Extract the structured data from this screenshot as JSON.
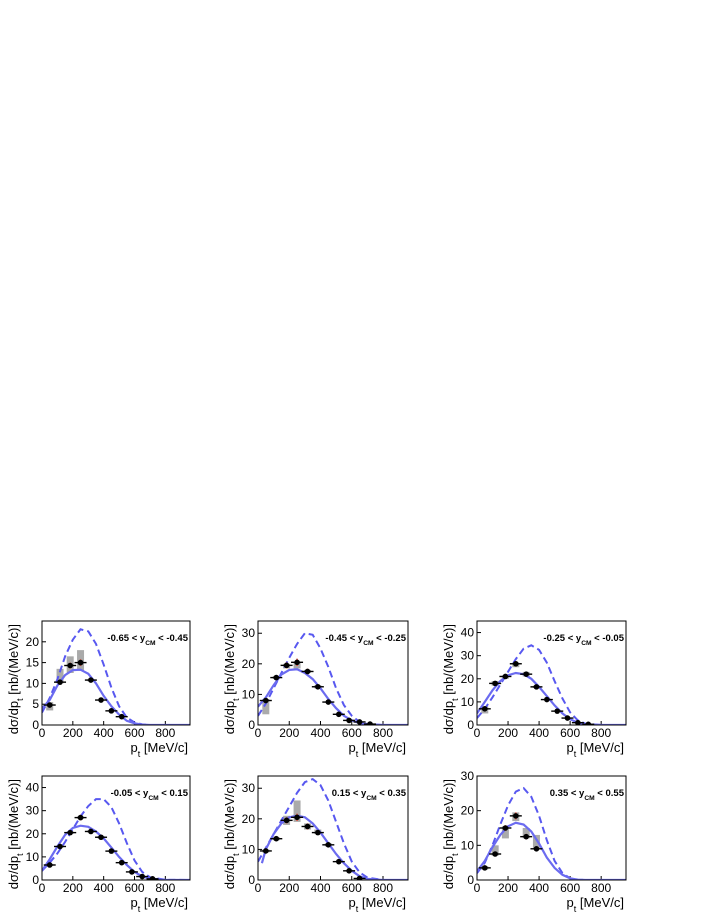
{
  "figure": {
    "xlabel": "p_t [MeV/c]",
    "ylabel": "dσ/dp_t [nb/(MeV/c)]",
    "colors": {
      "data_point": "#000000",
      "stat_error": "#e8503a",
      "sys_box": "#aaaaaa",
      "model_solid": "#6b6bf0",
      "model_dashed": "#5858f0"
    }
  },
  "chart_data": [
    {
      "type": "scatter",
      "range_label": "-0.65 < y_CM < -0.45",
      "xlim": [
        0,
        960
      ],
      "ylim": [
        0,
        25
      ],
      "x_ticks": [
        0,
        200,
        400,
        600,
        800
      ],
      "y_ticks": [
        0,
        5,
        10,
        15,
        20
      ],
      "grid": false,
      "series": [
        {
          "kind": "data",
          "x": [
            50,
            117,
            183,
            250,
            317,
            383,
            450,
            517
          ],
          "y": [
            4.8,
            10.3,
            14.3,
            15.0,
            10.8,
            6.0,
            3.4,
            2.0
          ],
          "stat_err": [
            0.4,
            0.5,
            0.7,
            0.8,
            0.6,
            0.4,
            0.3,
            0.2
          ],
          "sys_lo": [
            3.5,
            10.0,
            12.5,
            13.0,
            10.5,
            6.0,
            3.4,
            2.0
          ],
          "sys_hi": [
            5.5,
            13.5,
            16.5,
            18.0,
            11.0,
            6.0,
            3.4,
            2.0
          ]
        },
        {
          "kind": "model_solid",
          "x": [
            0,
            50,
            100,
            150,
            200,
            250,
            300,
            350,
            400,
            450,
            500,
            550,
            600,
            650,
            700,
            800,
            960
          ],
          "y": [
            4.0,
            6.0,
            9.5,
            12.0,
            13.2,
            13.3,
            12.3,
            10.0,
            7.0,
            4.5,
            2.5,
            1.0,
            0.4,
            0.1,
            0.0,
            0.0,
            0.0
          ]
        },
        {
          "kind": "model_dashed",
          "x": [
            0,
            50,
            100,
            150,
            200,
            250,
            300,
            350,
            400,
            450,
            500,
            550,
            600,
            650,
            700,
            800,
            960
          ],
          "y": [
            3.0,
            6.5,
            11.0,
            16.5,
            20.5,
            23.0,
            22.5,
            19.5,
            14.5,
            9.0,
            4.5,
            1.8,
            0.6,
            0.15,
            0.0,
            0.0,
            0.0
          ]
        }
      ]
    },
    {
      "type": "scatter",
      "range_label": "-0.45 < y_CM < -0.25",
      "xlim": [
        0,
        960
      ],
      "ylim": [
        0,
        34
      ],
      "x_ticks": [
        0,
        200,
        400,
        600,
        800
      ],
      "y_ticks": [
        0,
        10,
        20,
        30
      ],
      "grid": false,
      "series": [
        {
          "kind": "data",
          "x": [
            50,
            117,
            183,
            250,
            317,
            383,
            450,
            517,
            583,
            650,
            717
          ],
          "y": [
            8.0,
            15.5,
            19.5,
            20.5,
            17.5,
            12.5,
            7.5,
            3.5,
            1.5,
            1.0,
            0.3
          ],
          "stat_err": [
            0.5,
            0.6,
            1.0,
            1.2,
            0.9,
            0.7,
            0.5,
            0.3,
            0.2,
            0.2,
            0.1
          ],
          "sys_lo": [
            3.5,
            15.0,
            18.5,
            18.5,
            17.0,
            12.0,
            7.5,
            3.5,
            1.5,
            1.0,
            0.3
          ],
          "sys_hi": [
            8.5,
            16.0,
            20.0,
            20.5,
            18.0,
            13.0,
            7.5,
            3.5,
            1.5,
            1.0,
            0.3
          ]
        },
        {
          "kind": "model_solid",
          "x": [
            0,
            50,
            100,
            150,
            200,
            250,
            300,
            350,
            400,
            450,
            500,
            550,
            600,
            650,
            700,
            800,
            960
          ],
          "y": [
            6.0,
            9.0,
            13.0,
            16.5,
            18.0,
            18.2,
            17.0,
            15.0,
            12.0,
            8.5,
            5.5,
            3.0,
            1.5,
            0.6,
            0.2,
            0.0,
            0.0
          ]
        },
        {
          "kind": "model_dashed",
          "x": [
            0,
            50,
            100,
            150,
            200,
            250,
            300,
            350,
            400,
            450,
            500,
            550,
            600,
            650,
            700,
            800,
            960
          ],
          "y": [
            3.0,
            7.0,
            12.0,
            17.0,
            22.0,
            26.5,
            30.0,
            29.5,
            25.0,
            19.0,
            12.0,
            6.5,
            3.0,
            1.0,
            0.3,
            0.0,
            0.0
          ]
        }
      ]
    },
    {
      "type": "scatter",
      "range_label": "-0.25 < y_CM < -0.05",
      "xlim": [
        0,
        960
      ],
      "ylim": [
        0,
        45
      ],
      "x_ticks": [
        0,
        200,
        400,
        600,
        800
      ],
      "y_ticks": [
        0,
        10,
        20,
        30,
        40
      ],
      "grid": false,
      "series": [
        {
          "kind": "data",
          "x": [
            50,
            117,
            183,
            250,
            317,
            383,
            450,
            517,
            583,
            650,
            717
          ],
          "y": [
            7.0,
            18.0,
            21.0,
            26.5,
            22.0,
            16.5,
            11.0,
            6.0,
            3.0,
            1.0,
            0.3
          ],
          "stat_err": [
            0.6,
            0.8,
            1.0,
            1.2,
            1.0,
            0.8,
            0.6,
            0.4,
            0.3,
            0.2,
            0.1
          ],
          "sys_lo": [
            5.0,
            17.0,
            20.0,
            25.0,
            21.0,
            16.0,
            11.0,
            6.0,
            3.0,
            1.0,
            0.3
          ],
          "sys_hi": [
            8.0,
            19.0,
            21.5,
            27.0,
            23.0,
            17.0,
            11.0,
            6.0,
            3.0,
            1.0,
            0.3
          ]
        },
        {
          "kind": "model_solid",
          "x": [
            0,
            50,
            100,
            150,
            200,
            250,
            300,
            350,
            400,
            450,
            500,
            550,
            600,
            650,
            700,
            800,
            960
          ],
          "y": [
            5.0,
            10.0,
            15.0,
            19.0,
            21.5,
            22.5,
            22.0,
            20.0,
            16.5,
            12.5,
            8.5,
            5.0,
            2.5,
            1.0,
            0.3,
            0.0,
            0.0
          ]
        },
        {
          "kind": "model_dashed",
          "x": [
            0,
            50,
            100,
            150,
            200,
            250,
            300,
            350,
            400,
            450,
            500,
            550,
            600,
            650,
            700,
            800,
            960
          ],
          "y": [
            3.0,
            7.0,
            12.0,
            17.5,
            23.0,
            28.5,
            33.0,
            34.5,
            32.5,
            27.0,
            19.0,
            11.5,
            5.5,
            2.0,
            0.5,
            0.0,
            0.0
          ]
        }
      ]
    },
    {
      "type": "scatter",
      "range_label": "-0.05 < y_CM < 0.15",
      "xlim": [
        0,
        960
      ],
      "ylim": [
        0,
        45
      ],
      "x_ticks": [
        0,
        200,
        400,
        600,
        800
      ],
      "y_ticks": [
        0,
        10,
        20,
        30,
        40
      ],
      "grid": false,
      "series": [
        {
          "kind": "data",
          "x": [
            50,
            117,
            183,
            250,
            317,
            383,
            450,
            517,
            583,
            650,
            717
          ],
          "y": [
            6.5,
            14.5,
            20.5,
            27.0,
            21.0,
            18.5,
            12.5,
            7.5,
            3.5,
            1.5,
            0.5
          ],
          "stat_err": [
            0.6,
            0.8,
            1.0,
            1.2,
            1.0,
            0.8,
            0.6,
            0.4,
            0.3,
            0.2,
            0.1
          ],
          "sys_lo": [
            6.0,
            14.0,
            20.0,
            26.5,
            20.5,
            18.0,
            12.5,
            7.5,
            3.5,
            1.5,
            0.5
          ],
          "sys_hi": [
            7.0,
            15.0,
            21.0,
            27.5,
            21.5,
            19.0,
            12.5,
            7.5,
            3.5,
            1.5,
            0.5
          ]
        },
        {
          "kind": "model_solid",
          "x": [
            0,
            50,
            100,
            150,
            200,
            250,
            300,
            350,
            400,
            450,
            500,
            550,
            600,
            650,
            700,
            800,
            960
          ],
          "y": [
            4.0,
            9.0,
            14.5,
            19.5,
            22.5,
            23.5,
            23.0,
            21.0,
            18.0,
            14.0,
            10.0,
            6.5,
            3.5,
            1.5,
            0.6,
            0.1,
            0.0
          ]
        },
        {
          "kind": "model_dashed",
          "x": [
            0,
            50,
            100,
            150,
            200,
            250,
            300,
            350,
            400,
            450,
            500,
            550,
            600,
            650,
            700,
            800,
            960
          ],
          "y": [
            4.0,
            7.5,
            11.5,
            16.5,
            22.0,
            27.5,
            32.0,
            35.0,
            35.0,
            31.5,
            24.5,
            16.0,
            8.5,
            3.5,
            1.2,
            0.1,
            0.0
          ]
        }
      ]
    },
    {
      "type": "scatter",
      "range_label": "0.15 < y_CM < 0.35",
      "xlim": [
        0,
        960
      ],
      "ylim": [
        0,
        34
      ],
      "x_ticks": [
        0,
        200,
        400,
        600,
        800
      ],
      "y_ticks": [
        0,
        10,
        20,
        30
      ],
      "grid": false,
      "series": [
        {
          "kind": "data",
          "x": [
            50,
            117,
            183,
            250,
            317,
            383,
            450,
            517,
            583,
            650
          ],
          "y": [
            9.5,
            13.5,
            19.5,
            20.5,
            17.5,
            15.5,
            11.5,
            6.0,
            3.0,
            0.5
          ],
          "stat_err": [
            0.5,
            0.7,
            1.0,
            1.2,
            1.0,
            0.8,
            0.6,
            0.4,
            0.3,
            0.1
          ],
          "sys_lo": [
            9.0,
            13.0,
            18.0,
            19.0,
            16.5,
            15.0,
            11.0,
            6.0,
            3.0,
            0.5
          ],
          "sys_hi": [
            10.0,
            14.0,
            21.0,
            26.0,
            18.5,
            16.5,
            12.0,
            6.0,
            3.0,
            0.5
          ]
        },
        {
          "kind": "model_solid",
          "x": [
            25,
            50,
            100,
            150,
            200,
            250,
            300,
            350,
            400,
            450,
            500,
            550,
            600,
            650,
            700,
            800,
            960
          ],
          "y": [
            5.5,
            10.0,
            15.0,
            18.5,
            20.5,
            21.0,
            20.5,
            18.5,
            15.5,
            12.0,
            8.5,
            5.5,
            3.0,
            1.2,
            0.4,
            0.0,
            0.0
          ]
        },
        {
          "kind": "model_dashed",
          "x": [
            0,
            50,
            100,
            150,
            200,
            250,
            300,
            350,
            400,
            450,
            500,
            550,
            600,
            650,
            700,
            800,
            960
          ],
          "y": [
            6.0,
            10.5,
            15.0,
            19.5,
            24.0,
            28.5,
            32.0,
            33.0,
            31.0,
            26.0,
            19.0,
            12.0,
            6.0,
            2.5,
            0.8,
            0.0,
            0.0
          ]
        }
      ]
    },
    {
      "type": "scatter",
      "range_label": "0.35 < y_CM < 0.55",
      "xlim": [
        0,
        960
      ],
      "ylim": [
        0,
        30
      ],
      "x_ticks": [
        0,
        200,
        400,
        600,
        800
      ],
      "y_ticks": [
        0,
        10,
        20,
        30
      ],
      "grid": false,
      "series": [
        {
          "kind": "data",
          "x": [
            50,
            117,
            183,
            250,
            317,
            383
          ],
          "y": [
            3.5,
            7.5,
            15.0,
            18.5,
            12.5,
            9.0
          ],
          "stat_err": [
            0.4,
            0.6,
            0.8,
            1.0,
            0.8,
            0.6
          ],
          "sys_lo": [
            3.0,
            7.0,
            12.0,
            17.0,
            12.0,
            9.0
          ],
          "sys_hi": [
            4.0,
            10.0,
            15.5,
            19.5,
            15.0,
            13.0
          ]
        },
        {
          "kind": "model_solid",
          "x": [
            0,
            50,
            100,
            150,
            200,
            250,
            300,
            350,
            400,
            450,
            500,
            550,
            600,
            650,
            700,
            800,
            960
          ],
          "y": [
            2.5,
            5.5,
            9.5,
            13.0,
            15.5,
            16.5,
            16.0,
            14.0,
            10.5,
            6.5,
            3.5,
            1.5,
            0.5,
            0.1,
            0.0,
            0.0,
            0.0
          ]
        },
        {
          "kind": "model_dashed",
          "x": [
            0,
            50,
            100,
            150,
            200,
            250,
            300,
            350,
            400,
            450,
            500,
            550,
            600,
            650,
            700,
            800,
            960
          ],
          "y": [
            2.0,
            5.0,
            10.0,
            16.0,
            21.5,
            25.5,
            26.5,
            24.0,
            18.5,
            11.5,
            5.5,
            2.0,
            0.5,
            0.1,
            0.0,
            0.0,
            0.0
          ]
        }
      ]
    }
  ]
}
